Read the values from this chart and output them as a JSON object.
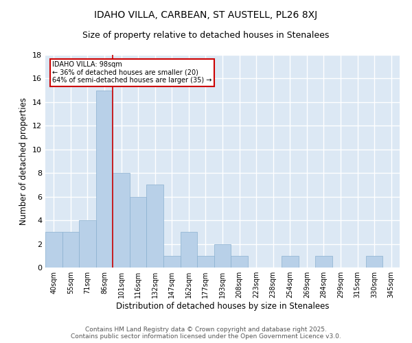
{
  "title": "IDAHO VILLA, CARBEAN, ST AUSTELL, PL26 8XJ",
  "subtitle": "Size of property relative to detached houses in Stenalees",
  "xlabel": "Distribution of detached houses by size in Stenalees",
  "ylabel": "Number of detached properties",
  "categories": [
    "40sqm",
    "55sqm",
    "71sqm",
    "86sqm",
    "101sqm",
    "116sqm",
    "132sqm",
    "147sqm",
    "162sqm",
    "177sqm",
    "193sqm",
    "208sqm",
    "223sqm",
    "238sqm",
    "254sqm",
    "269sqm",
    "284sqm",
    "299sqm",
    "315sqm",
    "330sqm",
    "345sqm"
  ],
  "values": [
    3,
    3,
    4,
    15,
    8,
    6,
    7,
    1,
    3,
    1,
    2,
    1,
    0,
    0,
    1,
    0,
    1,
    0,
    0,
    1,
    0
  ],
  "bar_color": "#b8d0e8",
  "bar_edge_color": "#8ab0d0",
  "background_color": "#dce8f4",
  "grid_color": "#ffffff",
  "annotation_text": "IDAHO VILLA: 98sqm\n← 36% of detached houses are smaller (20)\n64% of semi-detached houses are larger (35) →",
  "annotation_box_color": "#ffffff",
  "annotation_box_edge": "#cc0000",
  "red_line_x": 3.5,
  "ylim": [
    0,
    18
  ],
  "yticks": [
    0,
    2,
    4,
    6,
    8,
    10,
    12,
    14,
    16,
    18
  ],
  "footer": "Contains HM Land Registry data © Crown copyright and database right 2025.\nContains public sector information licensed under the Open Government Licence v3.0.",
  "title_fontsize": 10,
  "subtitle_fontsize": 9,
  "xlabel_fontsize": 8.5,
  "ylabel_fontsize": 8.5,
  "footer_fontsize": 6.5,
  "tick_fontsize": 8,
  "xtick_fontsize": 7
}
